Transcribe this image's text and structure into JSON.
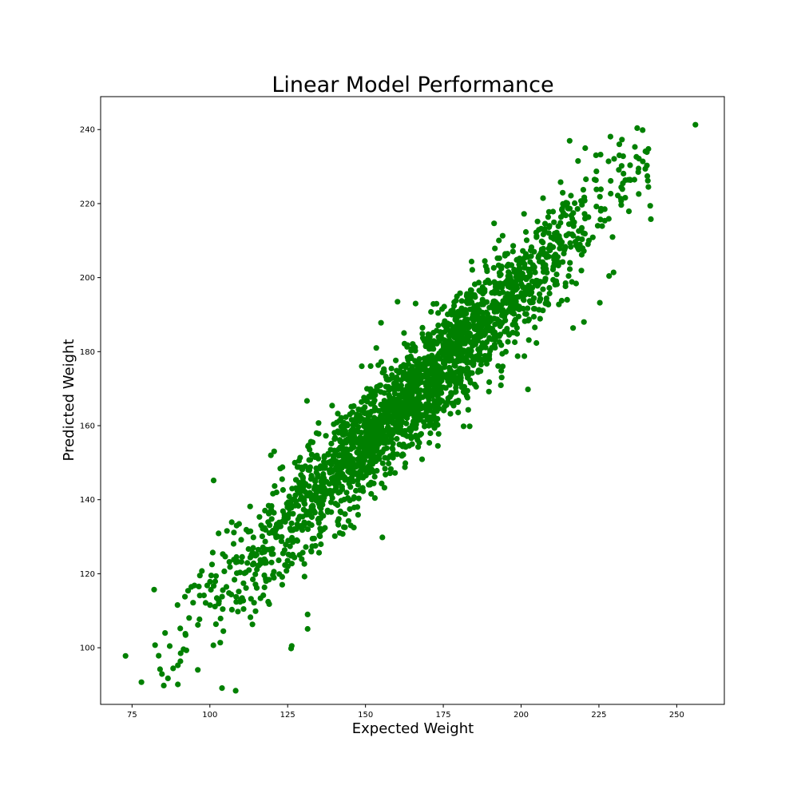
{
  "chart_data": {
    "type": "scatter",
    "title": "Linear Model Performance",
    "xlabel": "Expected Weight",
    "ylabel": "Predicted Weight",
    "xlim": [
      64.9,
      265.3
    ],
    "ylim": [
      84.7,
      248.9
    ],
    "xticks": [
      75,
      100,
      125,
      150,
      175,
      200,
      225,
      250
    ],
    "yticks": [
      100,
      120,
      140,
      160,
      180,
      200,
      220,
      240
    ],
    "grid": false,
    "legend": "none",
    "marker_color": "#008000",
    "point_count": 2400,
    "trend": {
      "slope": 0.85,
      "intercept": 28,
      "noise_sd": 7.5
    },
    "x_distribution": {
      "mean": 166,
      "sd": 30,
      "min": 73,
      "max": 256
    },
    "series": [
      {
        "points": [
          [
            72.9,
            97.8
          ],
          [
            78.0,
            90.7
          ],
          [
            82.1,
            115.7
          ],
          [
            82.4,
            100.7
          ],
          [
            84.0,
            94.2
          ],
          [
            84.6,
            92.9
          ],
          [
            85.2,
            89.8
          ],
          [
            85.6,
            104.0
          ],
          [
            89.7,
            90.1
          ],
          [
            93.0,
            115.4
          ],
          [
            96.8,
            119.5
          ],
          [
            101.2,
            145.2
          ],
          [
            103.9,
            89.1
          ],
          [
            108.3,
            88.4
          ],
          [
            102.8,
            130.9
          ],
          [
            108.6,
            133.0
          ],
          [
            119.6,
            152.0
          ],
          [
            126.1,
            99.8
          ],
          [
            126.3,
            100.5
          ],
          [
            131.4,
            109.0
          ],
          [
            131.4,
            105.1
          ],
          [
            155.0,
            187.8
          ],
          [
            160.3,
            193.5
          ],
          [
            166.1,
            193.0
          ],
          [
            174.6,
            191.5
          ],
          [
            202.2,
            169.8
          ],
          [
            209.1,
            214.0
          ],
          [
            212.7,
            225.8
          ],
          [
            214.8,
            194.0
          ],
          [
            216.7,
            186.4
          ],
          [
            218.3,
            231.5
          ],
          [
            220.2,
            188.0
          ],
          [
            223.6,
            226.5
          ],
          [
            225.3,
            193.2
          ],
          [
            226.9,
            215.4
          ],
          [
            229.7,
            201.4
          ],
          [
            229.9,
            232.1
          ],
          [
            232.4,
            237.3
          ],
          [
            232.8,
            232.8
          ],
          [
            237.8,
            222.6
          ],
          [
            239.1,
            231.4
          ],
          [
            239.9,
            229.4
          ],
          [
            240.4,
            233.9
          ],
          [
            240.4,
            230.3
          ],
          [
            240.9,
            224.5
          ],
          [
            241.5,
            219.4
          ],
          [
            241.7,
            215.8
          ],
          [
            256.0,
            241.3
          ]
        ]
      }
    ]
  }
}
